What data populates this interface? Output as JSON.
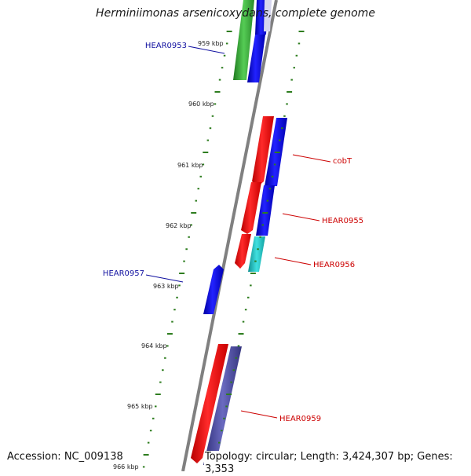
{
  "title": "Herminiimonas arsenicoxydans, complete genome",
  "accession": "Accession: NC_009138",
  "topology": "Topology: circular; Length: 3,424,307 bp; Genes: 3,353",
  "colors": {
    "backbone": "#808080",
    "tick": "#2e7d1f",
    "label_blue": "#1010a0",
    "label_red": "#cc0000",
    "gene_red": "#ee1111",
    "gene_blue": "#1111dd",
    "gene_green": "#33aa33",
    "gene_cyan": "#22c8c8",
    "gene_slate": "#4a4a96"
  },
  "scale_labels": [
    {
      "id": "959",
      "text": "959 kbp"
    },
    {
      "id": "960",
      "text": "960 kbp"
    },
    {
      "id": "961",
      "text": "961 kbp"
    },
    {
      "id": "962",
      "text": "962 kbp"
    },
    {
      "id": "963",
      "text": "963 kbp"
    },
    {
      "id": "964",
      "text": "964 kbp"
    },
    {
      "id": "965",
      "text": "965 kbp"
    },
    {
      "id": "966",
      "text": "966 kbp"
    }
  ],
  "gene_labels": [
    {
      "id": "HEAR0953",
      "text": "HEAR0953",
      "strand": "minus"
    },
    {
      "id": "cobT",
      "text": "cobT",
      "strand": "plus"
    },
    {
      "id": "HEAR0955",
      "text": "HEAR0955",
      "strand": "plus"
    },
    {
      "id": "HEAR0956",
      "text": "HEAR0956",
      "strand": "plus"
    },
    {
      "id": "HEAR0957",
      "text": "HEAR0957",
      "strand": "minus"
    },
    {
      "id": "HEAR0959",
      "text": "HEAR0959",
      "strand": "plus"
    }
  ]
}
